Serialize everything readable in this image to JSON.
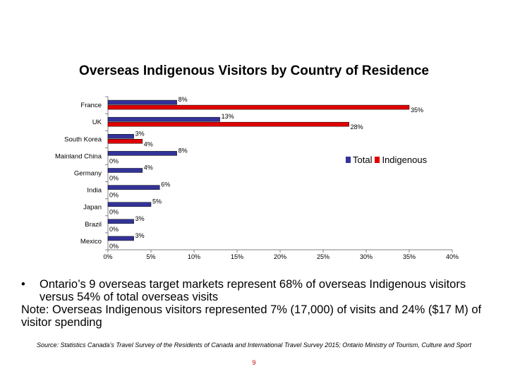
{
  "title": "Overseas Indigenous Visitors by Country of Residence",
  "chart_data": {
    "type": "bar",
    "orientation": "horizontal",
    "categories": [
      "France",
      "UK",
      "South Korea",
      "Mainland China",
      "Germany",
      "India",
      "Japan",
      "Brazil",
      "Mexico"
    ],
    "series": [
      {
        "name": "Total",
        "color": "#333399",
        "values": [
          8,
          13,
          3,
          8,
          4,
          6,
          5,
          3,
          3
        ],
        "labels": [
          "8%",
          "13%",
          "3%",
          "8%",
          "4%",
          "6%",
          "5%",
          "3%",
          "3%"
        ]
      },
      {
        "name": "Indigenous",
        "color": "#e00000",
        "values": [
          35,
          28,
          4,
          0,
          0,
          0,
          0,
          0,
          0
        ],
        "labels": [
          "35%",
          "28%",
          "4%",
          "0%",
          "0%",
          "0%",
          "0%",
          "0%",
          "0%"
        ]
      }
    ],
    "xlim": [
      0,
      40
    ],
    "xticks": [
      "0%",
      "5%",
      "10%",
      "15%",
      "20%",
      "25%",
      "30%",
      "35%",
      "40%"
    ],
    "legend": "right",
    "grid": false
  },
  "bullets": [
    "Ontario’s 9 overseas target markets represent 68% of overseas Indigenous visitors versus 54% of total overseas visits"
  ],
  "note": "Note: Overseas Indigenous visitors represented 7% (17,000) of visits and 24% ($17 M) of visitor spending",
  "source": "Source: Statistics Canada’s Travel Survey of the Residents of Canada and International Travel Survey 2015; Ontario Ministry of Tourism, Culture and Sport",
  "page_number": "9"
}
